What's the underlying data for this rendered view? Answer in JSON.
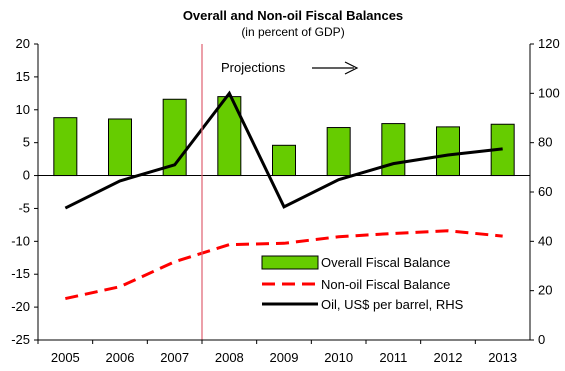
{
  "chart_data": {
    "type": "bar",
    "title": "Overall and Non-oil Fiscal Balances",
    "subtitle": "(in percent of GDP)",
    "categories": [
      "2005",
      "2006",
      "2007",
      "2008",
      "2009",
      "2010",
      "2011",
      "2012",
      "2013"
    ],
    "ylim": [
      -25,
      20
    ],
    "yticks": [
      20,
      15,
      10,
      5,
      0,
      -5,
      -10,
      -15,
      -20,
      -25
    ],
    "y2lim": [
      0,
      120
    ],
    "y2ticks": [
      120,
      100,
      80,
      60,
      40,
      20,
      0
    ],
    "series": [
      {
        "name": "Overall Fiscal Balance",
        "type": "bar",
        "axis": "left",
        "color": "#66cc00",
        "values": [
          8.8,
          8.6,
          11.6,
          12.0,
          4.6,
          7.3,
          7.9,
          7.4,
          7.8
        ]
      },
      {
        "name": "Non-oil Fiscal Balance",
        "type": "line",
        "axis": "left",
        "style": "dashed",
        "color": "#ff0000",
        "values": [
          -18.7,
          -16.9,
          -13.1,
          -10.5,
          -10.3,
          -9.3,
          -8.8,
          -8.4,
          -9.2
        ]
      },
      {
        "name": "Oil, US$ per barrel, RHS",
        "type": "line",
        "axis": "right",
        "color": "#000000",
        "values": [
          53.5,
          64.5,
          71.0,
          100.0,
          54.0,
          65.0,
          71.5,
          75.0,
          77.5
        ]
      }
    ],
    "annotation": {
      "text": "Projections"
    },
    "divider_after_category": "2007",
    "divider_color": "#e06070",
    "legend_position": "lower-right"
  }
}
